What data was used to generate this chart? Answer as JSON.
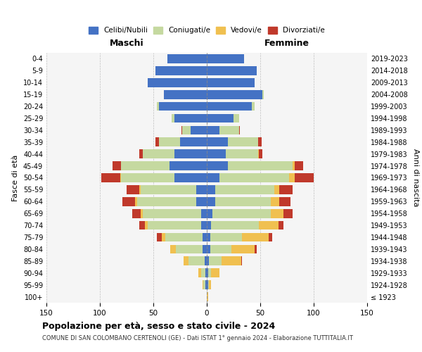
{
  "age_groups": [
    "100+",
    "95-99",
    "90-94",
    "85-89",
    "80-84",
    "75-79",
    "70-74",
    "65-69",
    "60-64",
    "55-59",
    "50-54",
    "45-49",
    "40-44",
    "35-39",
    "30-34",
    "25-29",
    "20-24",
    "15-19",
    "10-14",
    "5-9",
    "0-4"
  ],
  "birth_years": [
    "≤ 1923",
    "1924-1928",
    "1929-1933",
    "1934-1938",
    "1939-1943",
    "1944-1948",
    "1949-1953",
    "1954-1958",
    "1959-1963",
    "1964-1968",
    "1969-1973",
    "1974-1978",
    "1979-1983",
    "1984-1988",
    "1989-1993",
    "1994-1998",
    "1999-2003",
    "2004-2008",
    "2009-2013",
    "2014-2018",
    "2019-2023"
  ],
  "male": {
    "celibe": [
      0,
      1,
      1,
      2,
      4,
      4,
      5,
      5,
      10,
      10,
      30,
      35,
      30,
      25,
      15,
      30,
      45,
      40,
      55,
      48,
      37
    ],
    "coniugato": [
      0,
      2,
      4,
      15,
      25,
      35,
      50,
      55,
      55,
      52,
      50,
      45,
      30,
      20,
      8,
      3,
      2,
      0,
      0,
      0,
      0
    ],
    "vedovo": [
      0,
      1,
      3,
      5,
      5,
      3,
      3,
      2,
      2,
      1,
      1,
      0,
      0,
      0,
      0,
      0,
      0,
      0,
      0,
      0,
      0
    ],
    "divorziato": [
      0,
      0,
      0,
      0,
      0,
      5,
      5,
      8,
      12,
      12,
      18,
      8,
      3,
      3,
      1,
      0,
      0,
      0,
      0,
      0,
      0
    ]
  },
  "female": {
    "nubile": [
      0,
      1,
      1,
      2,
      3,
      3,
      4,
      5,
      8,
      8,
      12,
      20,
      18,
      20,
      12,
      25,
      42,
      52,
      45,
      47,
      35
    ],
    "coniugata": [
      0,
      1,
      3,
      12,
      20,
      30,
      45,
      55,
      52,
      55,
      65,
      60,
      30,
      28,
      18,
      5,
      3,
      1,
      0,
      0,
      0
    ],
    "vedova": [
      1,
      2,
      8,
      18,
      22,
      25,
      18,
      12,
      8,
      5,
      5,
      2,
      1,
      0,
      0,
      0,
      0,
      0,
      0,
      0,
      0
    ],
    "divorziata": [
      0,
      0,
      0,
      1,
      2,
      3,
      5,
      8,
      10,
      12,
      18,
      8,
      3,
      3,
      1,
      0,
      0,
      0,
      0,
      0,
      0
    ]
  },
  "colors": {
    "celibe": "#4472c4",
    "coniugato": "#c5d9a0",
    "vedovo": "#f0c050",
    "divorziato": "#c0392b"
  },
  "title": "Popolazione per età, sesso e stato civile - 2024",
  "subtitle": "COMUNE DI SAN COLOMBANO CERTENOLI (GE) - Dati ISTAT 1° gennaio 2024 - Elaborazione TUTTITALIA.IT",
  "xlabel_left": "Maschi",
  "xlabel_right": "Femmine",
  "ylabel_left": "Fasce di età",
  "ylabel_right": "Anni di nascita",
  "xlim": 150,
  "legend_labels": [
    "Celibi/Nubili",
    "Coniugati/e",
    "Vedovi/e",
    "Divorziati/e"
  ],
  "bg_axes": "#f5f5f5",
  "bg_fig": "#ffffff"
}
